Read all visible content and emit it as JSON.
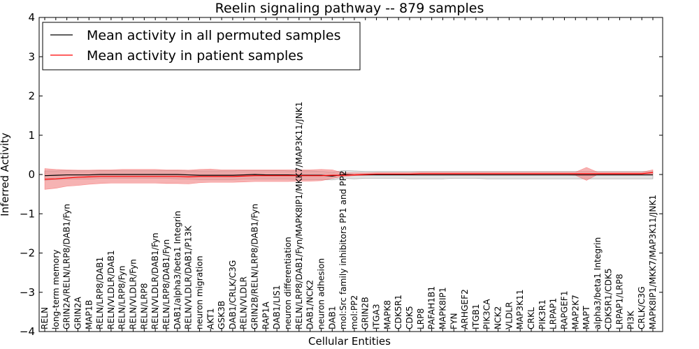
{
  "chart_data": {
    "type": "line",
    "title": "Reelin signaling pathway -- 879 samples",
    "xlabel": "Cellular Entities",
    "ylabel": "Inferred Activity",
    "ylim": [
      -4,
      4
    ],
    "yticks": [
      "−4",
      "−3",
      "−2",
      "−1",
      "0",
      "1",
      "2",
      "3",
      "4"
    ],
    "ytick_values": [
      -4,
      -3,
      -2,
      -1,
      0,
      1,
      2,
      3,
      4
    ],
    "grid": false,
    "legend_position": "top-left",
    "categories": [
      "RELN",
      "long-term memory",
      "GRIN2A/RELN/LRP8/DAB1/Fyn",
      "GRIN2A",
      "MAP1B",
      "RELN/LRP8/DAB1",
      "RELN/VLDLR/DAB1",
      "RELN/LRP8/Fyn",
      "RELN/VLDLR/Fyn",
      "RELN/LRP8",
      "RELN/VLDLR/DAB1/Fyn",
      "RELN/LRP8/DAB1/Fyn",
      "DAB1/alpha3/beta1 Integrin",
      "RELN/VLDLR/DAB1/P13K",
      "neuron migration",
      "AKT1",
      "GSK3B",
      "DAB1/CRLK/C3G",
      "RELN/VLDLR",
      "GRIN2B/RELN/LRP8/DAB1/Fyn",
      "RAP1A",
      "DAB1/LIS1",
      "neuron differentiation",
      "RELN/LRP8/DAB1/Fyn/MAPK8IP1/MKK7/MAP3K11/JNK1",
      "DAB1/NCK2",
      "neuron adhesion",
      "DAB1",
      "mol:Src family inhibitors PP1 and PP2",
      "mol:PP2",
      "GRIN2B",
      "ITGA3",
      "MAPK8",
      "CDK5R1",
      "CDK5",
      "LRP8",
      "PAFAH1B1",
      "MAPK8IP1",
      "FYN",
      "ARHGEF2",
      "ITGB1",
      "PIK3CA",
      "NCK2",
      "VLDLR",
      "MAP3K11",
      "CRKL",
      "PIK3R1",
      "LRPAP1",
      "RAPGEF1",
      "MAP2K7",
      "MAPT",
      "alpha3/beta1 Integrin",
      "CDK5R1/CDK5",
      "LRPAP1/LRP8",
      "PI3K",
      "CRLK/C3G",
      "MAPK8IP1/MKK7/MAP3K11/JNK1"
    ],
    "series": [
      {
        "name": "Mean activity in all permuted samples",
        "color": "#000000",
        "band_color": "#cccccc",
        "values": [
          -0.03,
          -0.02,
          -0.01,
          -0.01,
          -0.01,
          0.0,
          0.0,
          0.0,
          0.0,
          0.0,
          0.0,
          0.0,
          0.0,
          -0.01,
          -0.02,
          -0.02,
          -0.02,
          -0.02,
          -0.01,
          0.0,
          -0.01,
          -0.01,
          -0.01,
          -0.02,
          -0.02,
          -0.02,
          -0.04,
          0.0,
          -0.01,
          -0.01,
          -0.01,
          -0.01,
          -0.01,
          -0.01,
          -0.01,
          -0.01,
          -0.01,
          -0.01,
          -0.01,
          -0.01,
          -0.01,
          -0.01,
          -0.01,
          -0.01,
          -0.01,
          -0.01,
          -0.01,
          -0.01,
          -0.01,
          -0.01,
          -0.01,
          -0.01,
          -0.01,
          -0.01,
          -0.01,
          -0.01
        ],
        "lower": [
          -0.15,
          -0.13,
          -0.12,
          -0.11,
          -0.12,
          -0.1,
          -0.1,
          -0.1,
          -0.1,
          -0.1,
          -0.1,
          -0.1,
          -0.11,
          -0.12,
          -0.13,
          -0.13,
          -0.13,
          -0.13,
          -0.12,
          -0.11,
          -0.12,
          -0.12,
          -0.12,
          -0.13,
          -0.13,
          -0.13,
          -0.14,
          -0.1,
          -0.11,
          -0.1,
          -0.1,
          -0.1,
          -0.1,
          -0.11,
          -0.11,
          -0.11,
          -0.11,
          -0.1,
          -0.1,
          -0.1,
          -0.11,
          -0.11,
          -0.11,
          -0.11,
          -0.11,
          -0.11,
          -0.11,
          -0.11,
          -0.11,
          -0.11,
          -0.11,
          -0.11,
          -0.11,
          -0.11,
          -0.11,
          -0.11
        ],
        "upper": [
          0.09,
          0.09,
          0.1,
          0.1,
          0.1,
          0.1,
          0.1,
          0.1,
          0.1,
          0.1,
          0.1,
          0.1,
          0.1,
          0.09,
          0.09,
          0.09,
          0.09,
          0.09,
          0.1,
          0.1,
          0.1,
          0.1,
          0.09,
          0.09,
          0.09,
          0.08,
          0.06,
          0.1,
          0.09,
          0.08,
          0.08,
          0.08,
          0.08,
          0.08,
          0.08,
          0.08,
          0.08,
          0.08,
          0.08,
          0.08,
          0.08,
          0.08,
          0.08,
          0.08,
          0.08,
          0.08,
          0.08,
          0.08,
          0.08,
          0.08,
          0.08,
          0.08,
          0.08,
          0.08,
          0.08,
          0.08
        ]
      },
      {
        "name": "Mean activity in patient samples",
        "color": "#ff0000",
        "band_color": "#f08080",
        "values": [
          -0.12,
          -0.11,
          -0.09,
          -0.07,
          -0.06,
          -0.05,
          -0.05,
          -0.05,
          -0.05,
          -0.05,
          -0.05,
          -0.05,
          -0.05,
          -0.06,
          -0.05,
          -0.05,
          -0.05,
          -0.05,
          -0.04,
          -0.03,
          -0.03,
          -0.03,
          -0.03,
          -0.03,
          -0.03,
          -0.03,
          -0.02,
          -0.02,
          -0.01,
          0.0,
          0.01,
          0.01,
          0.01,
          0.01,
          0.02,
          0.02,
          0.02,
          0.02,
          0.02,
          0.02,
          0.02,
          0.02,
          0.02,
          0.02,
          0.02,
          0.02,
          0.02,
          0.02,
          0.02,
          0.02,
          0.02,
          0.02,
          0.02,
          0.02,
          0.02,
          0.05
        ],
        "lower": [
          -0.38,
          -0.35,
          -0.3,
          -0.28,
          -0.25,
          -0.23,
          -0.22,
          -0.22,
          -0.22,
          -0.22,
          -0.22,
          -0.23,
          -0.23,
          -0.24,
          -0.21,
          -0.2,
          -0.2,
          -0.2,
          -0.19,
          -0.18,
          -0.18,
          -0.18,
          -0.18,
          -0.17,
          -0.17,
          -0.16,
          -0.1,
          -0.05,
          -0.03,
          -0.02,
          -0.01,
          -0.01,
          -0.01,
          -0.01,
          -0.01,
          -0.01,
          -0.01,
          -0.01,
          -0.01,
          -0.01,
          -0.01,
          -0.01,
          -0.01,
          -0.01,
          -0.01,
          -0.01,
          -0.01,
          -0.01,
          -0.02,
          -0.15,
          0.0,
          0.0,
          0.0,
          0.0,
          0.0,
          0.0
        ],
        "upper": [
          0.15,
          0.13,
          0.12,
          0.11,
          0.11,
          0.12,
          0.12,
          0.13,
          0.13,
          0.13,
          0.13,
          0.12,
          0.12,
          0.11,
          0.13,
          0.14,
          0.12,
          0.12,
          0.12,
          0.12,
          0.12,
          0.12,
          0.12,
          0.12,
          0.12,
          0.13,
          0.12,
          0.04,
          0.04,
          0.04,
          0.05,
          0.05,
          0.05,
          0.05,
          0.06,
          0.06,
          0.06,
          0.06,
          0.06,
          0.06,
          0.06,
          0.06,
          0.06,
          0.06,
          0.06,
          0.06,
          0.06,
          0.06,
          0.06,
          0.18,
          0.06,
          0.06,
          0.06,
          0.06,
          0.06,
          0.12
        ]
      }
    ]
  }
}
